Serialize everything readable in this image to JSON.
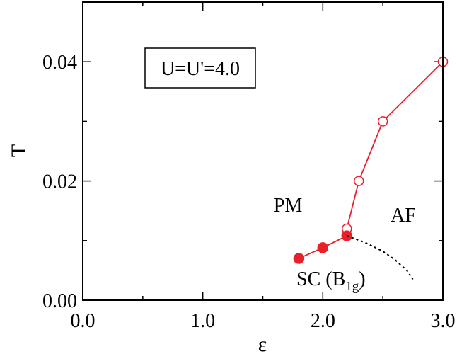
{
  "chart_data": {
    "type": "line",
    "xlabel": "ε",
    "ylabel": "T",
    "xlim": [
      0.0,
      3.0
    ],
    "ylim": [
      0.0,
      0.05
    ],
    "x_ticks": [
      0.0,
      1.0,
      2.0,
      3.0
    ],
    "x_tick_labels": [
      "0.0",
      "1.0",
      "2.0",
      "3.0"
    ],
    "y_ticks": [
      0.0,
      0.02,
      0.04
    ],
    "y_tick_labels": [
      "0.00",
      "0.02",
      "0.04"
    ],
    "grid": false,
    "accent_color": "#e8202a",
    "series": [
      {
        "marker": "open-circle",
        "line": "solid",
        "color": "#e8202a",
        "x": [
          2.2,
          2.3,
          2.5,
          3.0
        ],
        "y": [
          0.012,
          0.02,
          0.03,
          0.04
        ]
      },
      {
        "marker": "filled-circle",
        "line": "solid",
        "color": "#e8202a",
        "x": [
          1.8,
          2.0,
          2.2
        ],
        "y": [
          0.007,
          0.0088,
          0.0108
        ]
      },
      {
        "marker": "none",
        "line": "dotted",
        "color": "#000000",
        "x": [
          2.2,
          2.35,
          2.5,
          2.6,
          2.7,
          2.75
        ],
        "y": [
          0.0108,
          0.0097,
          0.0082,
          0.0068,
          0.005,
          0.0035
        ]
      }
    ],
    "annotations": {
      "box_label": "U=U'=4.0",
      "pm": "PM",
      "af": "AF",
      "sc_main": "SC (B",
      "sc_sub1": "1",
      "sc_sub2": "g",
      "sc_close": ")"
    }
  }
}
